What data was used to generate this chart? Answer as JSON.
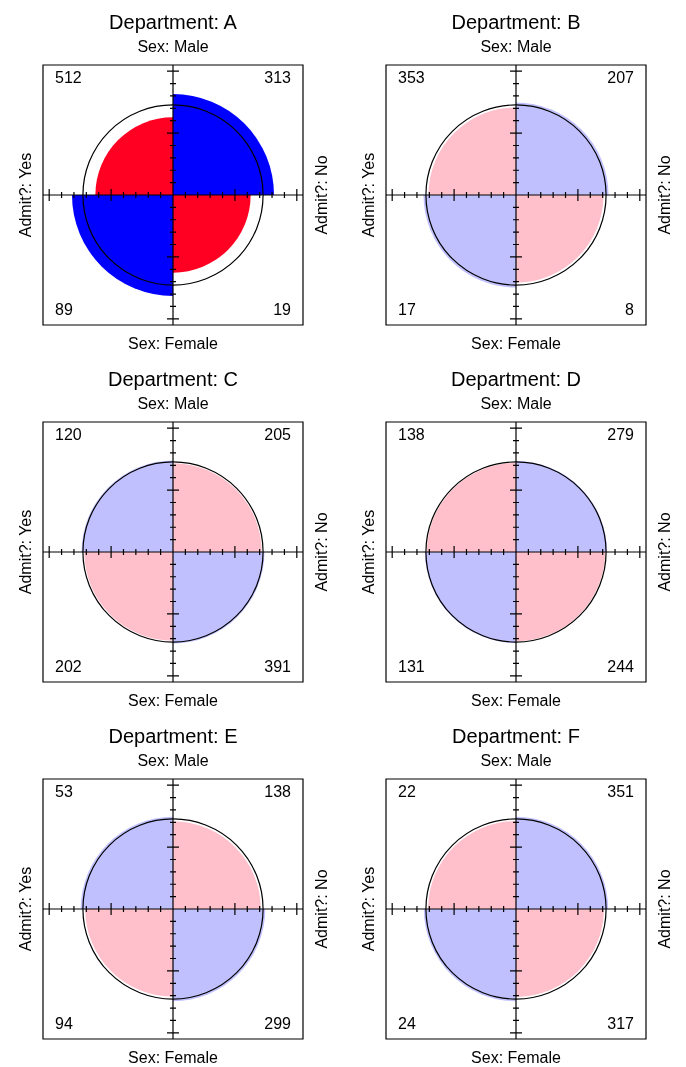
{
  "chart_data": [
    {
      "type": "other",
      "title": "Department: A",
      "subtitle": "Sex: Male",
      "xlabel": "Sex: Female",
      "ylabel": "Admit?: Yes",
      "y2label": "Admit?: No",
      "categories": [
        null,
        null,
        null,
        null
      ],
      "values": [
        512,
        313,
        89,
        19
      ],
      "colors": [
        "#ff0022",
        "#0000ff",
        "#0000ff",
        "#ff0022"
      ],
      "data_labels": true
    },
    {
      "type": "other",
      "title": "Department: B",
      "subtitle": "Sex: Male",
      "xlabel": "Sex: Female",
      "ylabel": "Admit?: Yes",
      "y2label": "Admit?: No",
      "categories": [
        null,
        null,
        null,
        null
      ],
      "values": [
        353,
        207,
        17,
        8
      ],
      "colors": [
        "#ffc0cb",
        "#c0c0ff",
        "#c0c0ff",
        "#ffc0cb"
      ],
      "data_labels": true
    },
    {
      "type": "other",
      "title": "Department: C",
      "subtitle": "Sex: Male",
      "xlabel": "Sex: Female",
      "ylabel": "Admit?: Yes",
      "y2label": "Admit?: No",
      "categories": [
        null,
        null,
        null,
        null
      ],
      "values": [
        120,
        205,
        202,
        391
      ],
      "colors": [
        "#c0c0ff",
        "#ffc0cb",
        "#ffc0cb",
        "#c0c0ff"
      ],
      "data_labels": true
    },
    {
      "type": "other",
      "title": "Department: D",
      "subtitle": "Sex: Male",
      "xlabel": "Sex: Female",
      "ylabel": "Admit?: Yes",
      "y2label": "Admit?: No",
      "categories": [
        null,
        null,
        null,
        null
      ],
      "values": [
        138,
        279,
        131,
        244
      ],
      "colors": [
        "#ffc0cb",
        "#c0c0ff",
        "#c0c0ff",
        "#ffc0cb"
      ],
      "data_labels": true
    },
    {
      "type": "other",
      "title": "Department: E",
      "subtitle": "Sex: Male",
      "xlabel": "Sex: Female",
      "ylabel": "Admit?: Yes",
      "y2label": "Admit?: No",
      "categories": [
        null,
        null,
        null,
        null
      ],
      "values": [
        53,
        138,
        94,
        299
      ],
      "colors": [
        "#c0c0ff",
        "#ffc0cb",
        "#ffc0cb",
        "#c0c0ff"
      ],
      "data_labels": true
    },
    {
      "type": "other",
      "title": "Department: F",
      "subtitle": "Sex: Male",
      "xlabel": "Sex: Female",
      "ylabel": "Admit?: Yes",
      "y2label": "Admit?: No",
      "categories": [
        null,
        null,
        null,
        null
      ],
      "values": [
        22,
        351,
        24,
        317
      ],
      "colors": [
        "#ffc0cb",
        "#c0c0ff",
        "#c0c0ff",
        "#ffc0cb"
      ],
      "data_labels": true
    }
  ]
}
